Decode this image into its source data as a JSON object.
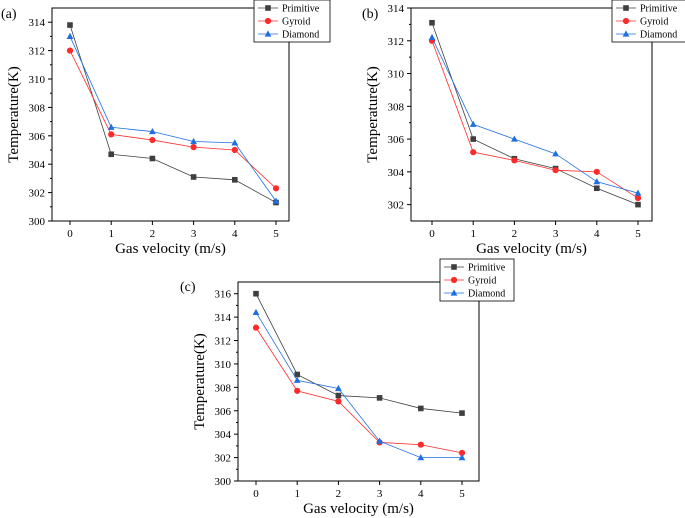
{
  "figure": {
    "colors": {
      "Primitive": "#3f3f3f",
      "Gyroid": "#ff2a2a",
      "Diamond": "#1f6fe0"
    },
    "legend_labels": [
      "Primitive",
      "Gyroid",
      "Diamond"
    ]
  },
  "chart_data": [
    {
      "type": "line",
      "panel_label": "(a)",
      "title": "",
      "xlabel": "Gas velocity (m/s)",
      "ylabel": "Temperature(K)",
      "x": [
        0,
        1,
        2,
        3,
        4,
        5
      ],
      "xticks": [
        "0",
        "1",
        "2",
        "3",
        "4",
        "5"
      ],
      "ylim": [
        300,
        315
      ],
      "yticks": [
        "300",
        "302",
        "304",
        "306",
        "308",
        "310",
        "312",
        "314"
      ],
      "legend_position": "top-right",
      "series": [
        {
          "name": "Primitive",
          "marker": "square",
          "values": [
            313.8,
            304.7,
            304.4,
            303.1,
            302.9,
            301.3
          ]
        },
        {
          "name": "Gyroid",
          "marker": "circle",
          "values": [
            312.0,
            306.1,
            305.7,
            305.2,
            305.0,
            302.3
          ]
        },
        {
          "name": "Diamond",
          "marker": "triangle",
          "values": [
            313.0,
            306.6,
            306.3,
            305.6,
            305.5,
            301.4
          ]
        }
      ]
    },
    {
      "type": "line",
      "panel_label": "(b)",
      "title": "",
      "xlabel": "Gas velocity (m/s)",
      "ylabel": "Temperature(K)",
      "x": [
        0,
        1,
        2,
        3,
        4,
        5
      ],
      "xticks": [
        "0",
        "1",
        "2",
        "3",
        "4",
        "5"
      ],
      "ylim": [
        301,
        314
      ],
      "yticks": [
        "302",
        "304",
        "306",
        "308",
        "310",
        "312",
        "314"
      ],
      "legend_position": "top-right",
      "series": [
        {
          "name": "Primitive",
          "marker": "square",
          "values": [
            313.1,
            306.0,
            304.8,
            304.2,
            303.0,
            302.0
          ]
        },
        {
          "name": "Gyroid",
          "marker": "circle",
          "values": [
            312.0,
            305.2,
            304.7,
            304.1,
            304.0,
            302.4
          ]
        },
        {
          "name": "Diamond",
          "marker": "triangle",
          "values": [
            312.2,
            306.9,
            306.0,
            305.1,
            303.4,
            302.7
          ]
        }
      ]
    },
    {
      "type": "line",
      "panel_label": "(c)",
      "title": "",
      "xlabel": "Gas velocity (m/s)",
      "ylabel": "Temperature(K)",
      "x": [
        0,
        1,
        2,
        3,
        4,
        5
      ],
      "xticks": [
        "0",
        "1",
        "2",
        "3",
        "4",
        "5"
      ],
      "ylim": [
        300,
        317
      ],
      "yticks": [
        "300",
        "302",
        "304",
        "306",
        "308",
        "310",
        "312",
        "314",
        "316"
      ],
      "legend_position": "top-right",
      "series": [
        {
          "name": "Primitive",
          "marker": "square",
          "values": [
            316.0,
            309.1,
            307.3,
            307.1,
            306.2,
            305.8
          ]
        },
        {
          "name": "Gyroid",
          "marker": "circle",
          "values": [
            313.1,
            307.7,
            306.8,
            303.3,
            303.1,
            302.4
          ]
        },
        {
          "name": "Diamond",
          "marker": "triangle",
          "values": [
            314.4,
            308.6,
            307.9,
            303.4,
            302.0,
            302.0
          ]
        }
      ]
    }
  ]
}
